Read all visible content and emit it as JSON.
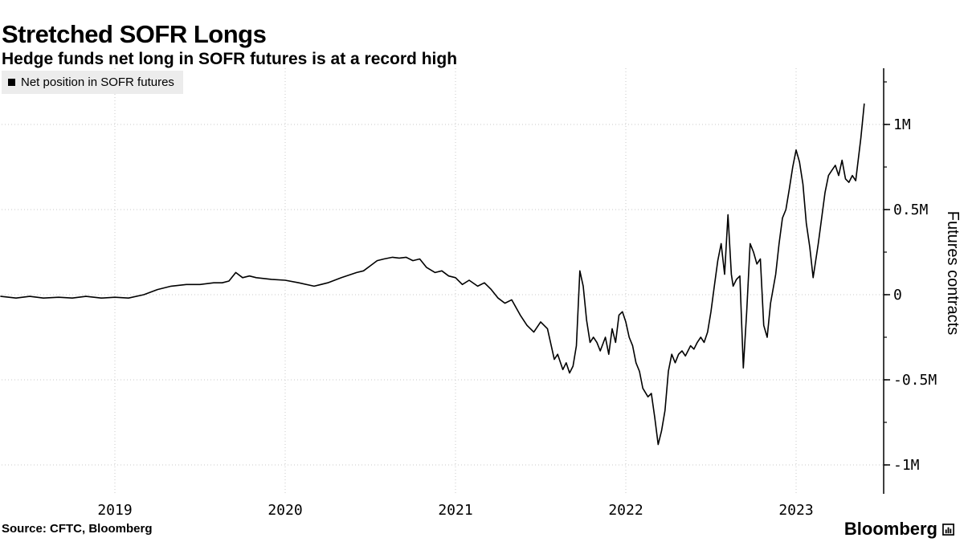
{
  "header": {
    "title": "Stretched SOFR Longs",
    "subtitle": "Hedge funds net long in SOFR futures is at a record high"
  },
  "legend": {
    "label": "Net position in SOFR futures",
    "marker_color": "#000000"
  },
  "footer": {
    "source": "Source: CFTC, Bloomberg",
    "brand": "Bloomberg"
  },
  "chart_data": {
    "type": "line",
    "title": "Stretched SOFR Longs",
    "subtitle": "Hedge funds net long in SOFR futures is at a record high",
    "ylabel": "Futures contracts",
    "xlabel": "",
    "x_unit": "year (fractional)",
    "y_unit": "futures contracts, millions",
    "x_range": [
      2018.33,
      2023.51
    ],
    "y_range": [
      -1.17,
      1.33
    ],
    "x_ticks": [
      2019,
      2020,
      2021,
      2022,
      2023
    ],
    "y_ticks": [
      {
        "value": 1,
        "label": "1M"
      },
      {
        "value": 0.5,
        "label": "0.5M"
      },
      {
        "value": 0,
        "label": "0"
      },
      {
        "value": -0.5,
        "label": "-0.5M"
      },
      {
        "value": -1,
        "label": "-1M"
      }
    ],
    "y_minor_tick_step": 0.25,
    "grid": "dotted",
    "axis_side": "right",
    "legend_position": "top-left",
    "series": [
      {
        "name": "Net position in SOFR futures",
        "color": "#000000",
        "points": [
          [
            2018.33,
            -0.01
          ],
          [
            2018.42,
            -0.02
          ],
          [
            2018.5,
            -0.01
          ],
          [
            2018.58,
            -0.02
          ],
          [
            2018.67,
            -0.015
          ],
          [
            2018.75,
            -0.02
          ],
          [
            2018.83,
            -0.01
          ],
          [
            2018.92,
            -0.02
          ],
          [
            2019.0,
            -0.015
          ],
          [
            2019.08,
            -0.02
          ],
          [
            2019.17,
            0.0
          ],
          [
            2019.25,
            0.03
          ],
          [
            2019.33,
            0.05
          ],
          [
            2019.42,
            0.06
          ],
          [
            2019.5,
            0.06
          ],
          [
            2019.58,
            0.07
          ],
          [
            2019.63,
            0.07
          ],
          [
            2019.67,
            0.08
          ],
          [
            2019.71,
            0.13
          ],
          [
            2019.75,
            0.1
          ],
          [
            2019.79,
            0.11
          ],
          [
            2019.83,
            0.1
          ],
          [
            2019.92,
            0.09
          ],
          [
            2020.0,
            0.085
          ],
          [
            2020.08,
            0.07
          ],
          [
            2020.17,
            0.05
          ],
          [
            2020.21,
            0.06
          ],
          [
            2020.25,
            0.07
          ],
          [
            2020.33,
            0.1
          ],
          [
            2020.42,
            0.13
          ],
          [
            2020.46,
            0.14
          ],
          [
            2020.5,
            0.17
          ],
          [
            2020.54,
            0.2
          ],
          [
            2020.58,
            0.21
          ],
          [
            2020.63,
            0.22
          ],
          [
            2020.67,
            0.215
          ],
          [
            2020.71,
            0.22
          ],
          [
            2020.75,
            0.2
          ],
          [
            2020.79,
            0.21
          ],
          [
            2020.83,
            0.16
          ],
          [
            2020.88,
            0.13
          ],
          [
            2020.92,
            0.14
          ],
          [
            2020.96,
            0.11
          ],
          [
            2021.0,
            0.1
          ],
          [
            2021.04,
            0.06
          ],
          [
            2021.08,
            0.085
          ],
          [
            2021.13,
            0.05
          ],
          [
            2021.17,
            0.07
          ],
          [
            2021.21,
            0.03
          ],
          [
            2021.25,
            -0.02
          ],
          [
            2021.29,
            -0.05
          ],
          [
            2021.33,
            -0.03
          ],
          [
            2021.38,
            -0.12
          ],
          [
            2021.42,
            -0.18
          ],
          [
            2021.46,
            -0.22
          ],
          [
            2021.5,
            -0.16
          ],
          [
            2021.54,
            -0.2
          ],
          [
            2021.58,
            -0.38
          ],
          [
            2021.6,
            -0.35
          ],
          [
            2021.63,
            -0.44
          ],
          [
            2021.65,
            -0.4
          ],
          [
            2021.67,
            -0.46
          ],
          [
            2021.69,
            -0.42
          ],
          [
            2021.71,
            -0.3
          ],
          [
            2021.73,
            0.14
          ],
          [
            2021.75,
            0.05
          ],
          [
            2021.77,
            -0.15
          ],
          [
            2021.79,
            -0.28
          ],
          [
            2021.81,
            -0.25
          ],
          [
            2021.83,
            -0.28
          ],
          [
            2021.85,
            -0.33
          ],
          [
            2021.88,
            -0.25
          ],
          [
            2021.9,
            -0.35
          ],
          [
            2021.92,
            -0.2
          ],
          [
            2021.94,
            -0.28
          ],
          [
            2021.96,
            -0.12
          ],
          [
            2021.98,
            -0.1
          ],
          [
            2022.0,
            -0.16
          ],
          [
            2022.02,
            -0.25
          ],
          [
            2022.04,
            -0.3
          ],
          [
            2022.06,
            -0.4
          ],
          [
            2022.08,
            -0.45
          ],
          [
            2022.1,
            -0.55
          ],
          [
            2022.13,
            -0.6
          ],
          [
            2022.15,
            -0.58
          ],
          [
            2022.17,
            -0.72
          ],
          [
            2022.19,
            -0.88
          ],
          [
            2022.21,
            -0.8
          ],
          [
            2022.23,
            -0.68
          ],
          [
            2022.25,
            -0.45
          ],
          [
            2022.27,
            -0.35
          ],
          [
            2022.29,
            -0.4
          ],
          [
            2022.31,
            -0.35
          ],
          [
            2022.33,
            -0.33
          ],
          [
            2022.35,
            -0.36
          ],
          [
            2022.38,
            -0.3
          ],
          [
            2022.4,
            -0.32
          ],
          [
            2022.42,
            -0.28
          ],
          [
            2022.44,
            -0.25
          ],
          [
            2022.46,
            -0.28
          ],
          [
            2022.48,
            -0.22
          ],
          [
            2022.5,
            -0.1
          ],
          [
            2022.52,
            0.05
          ],
          [
            2022.54,
            0.2
          ],
          [
            2022.56,
            0.3
          ],
          [
            2022.58,
            0.12
          ],
          [
            2022.6,
            0.47
          ],
          [
            2022.62,
            0.12
          ],
          [
            2022.63,
            0.05
          ],
          [
            2022.65,
            0.09
          ],
          [
            2022.67,
            0.11
          ],
          [
            2022.69,
            -0.43
          ],
          [
            2022.71,
            -0.1
          ],
          [
            2022.73,
            0.3
          ],
          [
            2022.75,
            0.25
          ],
          [
            2022.77,
            0.18
          ],
          [
            2022.79,
            0.21
          ],
          [
            2022.81,
            -0.18
          ],
          [
            2022.83,
            -0.25
          ],
          [
            2022.85,
            -0.05
          ],
          [
            2022.88,
            0.12
          ],
          [
            2022.9,
            0.3
          ],
          [
            2022.92,
            0.45
          ],
          [
            2022.94,
            0.5
          ],
          [
            2022.96,
            0.62
          ],
          [
            2022.98,
            0.75
          ],
          [
            2023.0,
            0.85
          ],
          [
            2023.02,
            0.78
          ],
          [
            2023.04,
            0.65
          ],
          [
            2023.06,
            0.42
          ],
          [
            2023.08,
            0.28
          ],
          [
            2023.1,
            0.1
          ],
          [
            2023.13,
            0.3
          ],
          [
            2023.15,
            0.45
          ],
          [
            2023.17,
            0.6
          ],
          [
            2023.19,
            0.7
          ],
          [
            2023.21,
            0.73
          ],
          [
            2023.23,
            0.76
          ],
          [
            2023.25,
            0.7
          ],
          [
            2023.27,
            0.79
          ],
          [
            2023.29,
            0.68
          ],
          [
            2023.31,
            0.66
          ],
          [
            2023.33,
            0.7
          ],
          [
            2023.35,
            0.67
          ],
          [
            2023.38,
            0.92
          ],
          [
            2023.4,
            1.12
          ]
        ]
      }
    ]
  }
}
